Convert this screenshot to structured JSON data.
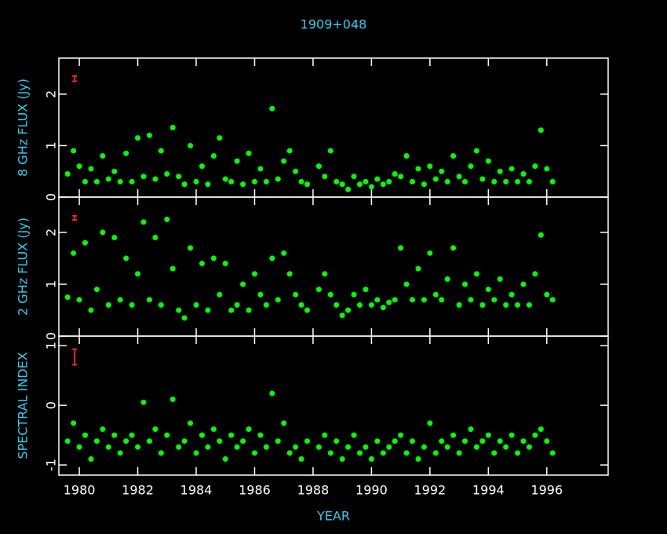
{
  "chart_data": [
    {
      "type": "scatter",
      "title": "1909+048",
      "ylabel": "8 GHz FLUX (Jy)",
      "color": "#00ff00",
      "xlim": [
        1979.3,
        1998.1
      ],
      "ylim": [
        0,
        2.7
      ],
      "yticks": [
        0,
        1,
        2
      ],
      "errorbar": {
        "x": 1979.84,
        "y": 2.3,
        "err": 0.05,
        "color": "#ff2020"
      },
      "x": [
        1979.6,
        1979.8,
        1980.0,
        1980.2,
        1980.4,
        1980.6,
        1980.8,
        1981.0,
        1981.2,
        1981.4,
        1981.6,
        1981.8,
        1982.0,
        1982.2,
        1982.4,
        1982.6,
        1982.8,
        1983.0,
        1983.2,
        1983.4,
        1983.6,
        1983.8,
        1984.0,
        1984.2,
        1984.4,
        1984.6,
        1984.8,
        1985.0,
        1985.2,
        1985.4,
        1985.6,
        1985.8,
        1986.0,
        1986.2,
        1986.4,
        1986.6,
        1986.8,
        1987.0,
        1987.2,
        1987.4,
        1987.6,
        1987.8,
        1988.2,
        1988.4,
        1988.6,
        1988.8,
        1989.0,
        1989.2,
        1989.4,
        1989.6,
        1989.8,
        1990.0,
        1990.2,
        1990.4,
        1990.6,
        1990.8,
        1991.0,
        1991.2,
        1991.4,
        1991.6,
        1991.8,
        1992.0,
        1992.2,
        1992.4,
        1992.6,
        1992.8,
        1993.0,
        1993.2,
        1993.4,
        1993.6,
        1993.8,
        1994.0,
        1994.2,
        1994.4,
        1994.6,
        1994.8,
        1995.0,
        1995.2,
        1995.4,
        1995.6,
        1995.8,
        1996.0,
        1996.2
      ],
      "values": [
        0.45,
        0.9,
        0.6,
        0.3,
        0.55,
        0.3,
        0.8,
        0.35,
        0.5,
        0.3,
        0.85,
        0.3,
        1.15,
        0.4,
        1.2,
        0.35,
        0.9,
        0.45,
        1.35,
        0.4,
        0.25,
        1.0,
        0.3,
        0.6,
        0.25,
        0.8,
        1.15,
        0.35,
        0.3,
        0.7,
        0.25,
        0.85,
        0.3,
        0.55,
        0.3,
        1.72,
        0.35,
        0.7,
        0.9,
        0.5,
        0.3,
        0.25,
        0.6,
        0.4,
        0.9,
        0.3,
        0.25,
        0.15,
        0.4,
        0.25,
        0.3,
        0.2,
        0.35,
        0.25,
        0.3,
        0.45,
        0.4,
        0.8,
        0.3,
        0.55,
        0.25,
        0.6,
        0.35,
        0.5,
        0.3,
        0.8,
        0.4,
        0.3,
        0.6,
        0.9,
        0.35,
        0.7,
        0.3,
        0.5,
        0.3,
        0.55,
        0.3,
        0.45,
        0.3,
        0.6,
        1.3,
        0.55,
        0.3
      ]
    },
    {
      "type": "scatter",
      "ylabel": "2 GHz FLUX (Jy)",
      "color": "#00ff00",
      "xlim": [
        1979.3,
        1998.1
      ],
      "ylim": [
        0,
        2.68
      ],
      "yticks": [
        0,
        1,
        2
      ],
      "errorbar": {
        "x": 1979.84,
        "y": 2.28,
        "err": 0.04,
        "color": "#ff2020"
      },
      "x": [
        1979.6,
        1979.8,
        1980.0,
        1980.2,
        1980.4,
        1980.6,
        1980.8,
        1981.0,
        1981.2,
        1981.4,
        1981.6,
        1981.8,
        1982.0,
        1982.2,
        1982.4,
        1982.6,
        1982.8,
        1983.0,
        1983.2,
        1983.4,
        1983.6,
        1983.8,
        1984.0,
        1984.2,
        1984.4,
        1984.6,
        1984.8,
        1985.0,
        1985.2,
        1985.4,
        1985.6,
        1985.8,
        1986.0,
        1986.2,
        1986.4,
        1986.6,
        1986.8,
        1987.0,
        1987.2,
        1987.4,
        1987.6,
        1987.8,
        1988.2,
        1988.4,
        1988.6,
        1988.8,
        1989.0,
        1989.2,
        1989.4,
        1989.6,
        1989.8,
        1990.0,
        1990.2,
        1990.4,
        1990.6,
        1990.8,
        1991.0,
        1991.2,
        1991.4,
        1991.6,
        1991.8,
        1992.0,
        1992.2,
        1992.4,
        1992.6,
        1992.8,
        1993.0,
        1993.2,
        1993.4,
        1993.6,
        1993.8,
        1994.0,
        1994.2,
        1994.4,
        1994.6,
        1994.8,
        1995.0,
        1995.2,
        1995.4,
        1995.6,
        1995.8,
        1996.0,
        1996.2
      ],
      "values": [
        0.75,
        1.6,
        0.7,
        1.8,
        0.5,
        0.9,
        2.0,
        0.6,
        1.9,
        0.7,
        1.5,
        0.6,
        1.2,
        2.2,
        0.7,
        1.9,
        0.6,
        2.25,
        1.3,
        0.5,
        0.35,
        1.7,
        0.6,
        1.4,
        0.5,
        1.5,
        0.8,
        1.4,
        0.5,
        0.6,
        1.0,
        0.5,
        1.2,
        0.8,
        0.6,
        1.5,
        0.7,
        1.6,
        1.2,
        0.8,
        0.6,
        0.5,
        0.9,
        1.2,
        0.8,
        0.6,
        0.4,
        0.5,
        0.8,
        0.6,
        0.9,
        0.6,
        0.7,
        0.55,
        0.65,
        0.7,
        1.7,
        1.0,
        0.7,
        1.3,
        0.7,
        1.6,
        0.8,
        0.7,
        1.1,
        1.7,
        0.6,
        1.0,
        0.7,
        1.2,
        0.6,
        0.9,
        0.7,
        1.1,
        0.6,
        0.8,
        0.6,
        1.0,
        0.6,
        1.2,
        1.95,
        0.8,
        0.7
      ]
    },
    {
      "type": "scatter",
      "ylabel": "SPECTRAL INDEX",
      "xlabel": "YEAR",
      "color": "#00ff00",
      "xlim": [
        1979.3,
        1998.1
      ],
      "ylim": [
        -1.17,
        1.16
      ],
      "yticks": [
        -1,
        0,
        1
      ],
      "xticks": [
        1980,
        1982,
        1984,
        1986,
        1988,
        1990,
        1992,
        1994,
        1996
      ],
      "errorbar": {
        "x": 1979.84,
        "y": 0.81,
        "err": 0.13,
        "color": "#ff2020"
      },
      "x": [
        1979.6,
        1979.8,
        1980.0,
        1980.2,
        1980.4,
        1980.6,
        1980.8,
        1981.0,
        1981.2,
        1981.4,
        1981.6,
        1981.8,
        1982.0,
        1982.2,
        1982.4,
        1982.6,
        1982.8,
        1983.0,
        1983.2,
        1983.4,
        1983.6,
        1983.8,
        1984.0,
        1984.2,
        1984.4,
        1984.6,
        1984.8,
        1985.0,
        1985.2,
        1985.4,
        1985.6,
        1985.8,
        1986.0,
        1986.2,
        1986.4,
        1986.6,
        1986.8,
        1987.0,
        1987.2,
        1987.4,
        1987.6,
        1987.8,
        1988.2,
        1988.4,
        1988.6,
        1988.8,
        1989.0,
        1989.2,
        1989.4,
        1989.6,
        1989.8,
        1990.0,
        1990.2,
        1990.4,
        1990.6,
        1990.8,
        1991.0,
        1991.2,
        1991.4,
        1991.6,
        1991.8,
        1992.0,
        1992.2,
        1992.4,
        1992.6,
        1992.8,
        1993.0,
        1993.2,
        1993.4,
        1993.6,
        1993.8,
        1994.0,
        1994.2,
        1994.4,
        1994.6,
        1994.8,
        1995.0,
        1995.2,
        1995.4,
        1995.6,
        1995.8,
        1996.0,
        1996.2
      ],
      "values": [
        -0.6,
        -0.3,
        -0.7,
        -0.5,
        -0.9,
        -0.6,
        -0.4,
        -0.7,
        -0.5,
        -0.8,
        -0.6,
        -0.5,
        -0.7,
        0.05,
        -0.6,
        -0.4,
        -0.8,
        -0.5,
        0.1,
        -0.7,
        -0.6,
        -0.3,
        -0.8,
        -0.5,
        -0.7,
        -0.4,
        -0.6,
        -0.9,
        -0.5,
        -0.7,
        -0.6,
        -0.4,
        -0.8,
        -0.5,
        -0.7,
        0.2,
        -0.6,
        -0.3,
        -0.8,
        -0.7,
        -0.9,
        -0.6,
        -0.7,
        -0.5,
        -0.8,
        -0.6,
        -0.9,
        -0.7,
        -0.5,
        -0.8,
        -0.7,
        -0.9,
        -0.6,
        -0.8,
        -0.7,
        -0.6,
        -0.5,
        -0.8,
        -0.6,
        -0.9,
        -0.7,
        -0.3,
        -0.8,
        -0.6,
        -0.7,
        -0.5,
        -0.8,
        -0.6,
        -0.4,
        -0.7,
        -0.6,
        -0.5,
        -0.8,
        -0.6,
        -0.7,
        -0.5,
        -0.8,
        -0.6,
        -0.7,
        -0.5,
        -0.4,
        -0.6,
        -0.8
      ]
    }
  ]
}
